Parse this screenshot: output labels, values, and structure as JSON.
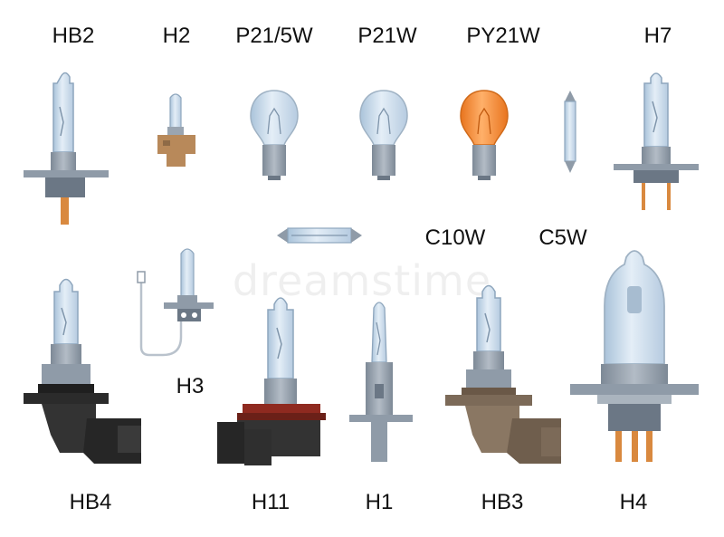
{
  "labels": {
    "hb2": "HB2",
    "h2": "H2",
    "p21_5w": "P21/5W",
    "p21w": "P21W",
    "py21w": "PY21W",
    "h7": "H7",
    "c10w": "C10W",
    "c5w": "C5W",
    "h3": "H3",
    "hb4": "HB4",
    "h11": "H11",
    "h1": "H1",
    "hb3": "HB3",
    "h4": "H4"
  },
  "watermark": "dreamstime",
  "colors": {
    "glass": "#cfe0ef",
    "glass_edge": "#8ea6bd",
    "metal": "#8f9ba8",
    "metal_dark": "#6b7785",
    "plastic_black": "#2b2b2b",
    "plastic_red": "#8f2a20",
    "plastic_brown": "#7c6a58",
    "h2_base": "#b8895a",
    "amber": "#f08a3c",
    "copper": "#d9893f"
  }
}
